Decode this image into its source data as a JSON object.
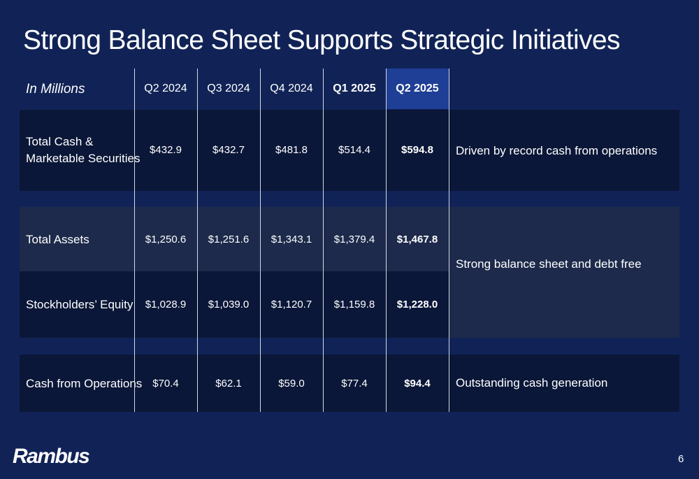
{
  "slide": {
    "title": "Strong Balance Sheet Supports Strategic Initiatives",
    "page_number": "6",
    "logo_text": "Rambus"
  },
  "table": {
    "units_label": "In Millions",
    "columns": [
      "Q2 2024",
      "Q3 2024",
      "Q4 2024",
      "Q1 2025",
      "Q2 2025"
    ],
    "rows": [
      {
        "label_line1": "Total Cash &",
        "label_line2": "Marketable Securities",
        "values": [
          "$432.9",
          "$432.7",
          "$481.8",
          "$514.4",
          "$594.8"
        ]
      },
      {
        "label": "Total Assets",
        "values": [
          "$1,250.6",
          "$1,251.6",
          "$1,343.1",
          "$1,379.4",
          "$1,467.8"
        ]
      },
      {
        "label": "Stockholders’ Equity",
        "values": [
          "$1,028.9",
          "$1,039.0",
          "$1,120.7",
          "$1,159.8",
          "$1,228.0"
        ]
      },
      {
        "label": "Cash from Operations",
        "values": [
          "$70.4",
          "$62.1",
          "$59.0",
          "$77.4",
          "$94.4"
        ]
      }
    ],
    "comments": {
      "cash": "Driven by record cash from operations",
      "balance": "Strong balance sheet and debt free",
      "operations": "Outstanding cash generation"
    }
  },
  "colors": {
    "background": "#112356",
    "row_dark": "#0b1738",
    "row_mid": "#1d2a4b",
    "highlight_column": "#1e3f95"
  }
}
